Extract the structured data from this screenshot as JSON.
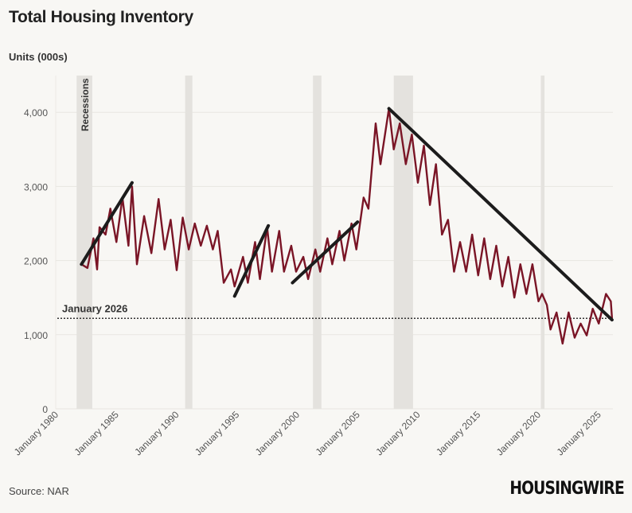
{
  "title": "Total Housing Inventory",
  "source": "Source: NAR",
  "logo": "HOUSINGWIRE",
  "chart_data": {
    "type": "line",
    "title": "Total Housing Inventory",
    "ylabel": "Units (000s)",
    "ylim": [
      0,
      4300
    ],
    "xlim": [
      1980,
      2026.2
    ],
    "grid": true,
    "yticks": [
      0,
      1000,
      2000,
      3000,
      4000
    ],
    "ytick_labels": [
      "0",
      "1,000",
      "2,000",
      "3,000",
      "4,000"
    ],
    "xticks": [
      1980,
      1985,
      1990,
      1995,
      2000,
      2005,
      2010,
      2015,
      2020,
      2025
    ],
    "xtick_labels": [
      "January 1980",
      "January 1985",
      "January 1990",
      "January 1995",
      "January 2000",
      "January 2005",
      "January 2010",
      "January 2015",
      "January 2020",
      "January 2025"
    ],
    "line_color": "#7a1526",
    "recession_label": "Recessions",
    "recessions": [
      [
        1981.6,
        1982.9
      ],
      [
        1990.6,
        1991.2
      ],
      [
        2001.2,
        2001.9
      ],
      [
        2007.9,
        2009.5
      ],
      [
        2020.1,
        2020.4
      ]
    ],
    "reference_line": {
      "label": "January 2026",
      "value": 1220
    },
    "trend_lines": [
      [
        [
          1982.0,
          1950
        ],
        [
          1986.2,
          3050
        ]
      ],
      [
        [
          1994.7,
          1520
        ],
        [
          1997.5,
          2470
        ]
      ],
      [
        [
          1999.5,
          1700
        ],
        [
          2004.9,
          2520
        ]
      ],
      [
        [
          2007.5,
          4050
        ],
        [
          2026.0,
          1200
        ]
      ]
    ],
    "series": [
      [
        1982.0,
        1950
      ],
      [
        1982.5,
        1900
      ],
      [
        1983.0,
        2300
      ],
      [
        1983.3,
        1880
      ],
      [
        1983.5,
        2450
      ],
      [
        1984.0,
        2350
      ],
      [
        1984.4,
        2700
      ],
      [
        1984.9,
        2250
      ],
      [
        1985.4,
        2850
      ],
      [
        1985.9,
        2200
      ],
      [
        1986.2,
        3000
      ],
      [
        1986.6,
        1950
      ],
      [
        1987.2,
        2600
      ],
      [
        1987.8,
        2100
      ],
      [
        1988.4,
        2830
      ],
      [
        1988.9,
        2150
      ],
      [
        1989.4,
        2550
      ],
      [
        1989.9,
        1870
      ],
      [
        1990.4,
        2580
      ],
      [
        1990.9,
        2150
      ],
      [
        1991.4,
        2500
      ],
      [
        1991.9,
        2200
      ],
      [
        1992.4,
        2470
      ],
      [
        1992.9,
        2150
      ],
      [
        1993.3,
        2400
      ],
      [
        1993.8,
        1700
      ],
      [
        1994.4,
        1880
      ],
      [
        1994.7,
        1650
      ],
      [
        1995.4,
        2050
      ],
      [
        1995.8,
        1700
      ],
      [
        1996.4,
        2250
      ],
      [
        1996.8,
        1750
      ],
      [
        1997.4,
        2450
      ],
      [
        1997.8,
        1850
      ],
      [
        1998.4,
        2400
      ],
      [
        1998.8,
        1850
      ],
      [
        1999.4,
        2200
      ],
      [
        1999.8,
        1850
      ],
      [
        2000.4,
        2050
      ],
      [
        2000.8,
        1750
      ],
      [
        2001.4,
        2150
      ],
      [
        2001.8,
        1850
      ],
      [
        2002.4,
        2300
      ],
      [
        2002.8,
        1950
      ],
      [
        2003.4,
        2400
      ],
      [
        2003.8,
        2000
      ],
      [
        2004.4,
        2500
      ],
      [
        2004.8,
        2150
      ],
      [
        2005.4,
        2850
      ],
      [
        2005.8,
        2700
      ],
      [
        2006.4,
        3850
      ],
      [
        2006.8,
        3300
      ],
      [
        2007.5,
        4050
      ],
      [
        2007.9,
        3500
      ],
      [
        2008.4,
        3850
      ],
      [
        2008.9,
        3300
      ],
      [
        2009.4,
        3700
      ],
      [
        2009.9,
        3050
      ],
      [
        2010.4,
        3550
      ],
      [
        2010.9,
        2750
      ],
      [
        2011.4,
        3300
      ],
      [
        2011.9,
        2350
      ],
      [
        2012.4,
        2550
      ],
      [
        2012.9,
        1850
      ],
      [
        2013.4,
        2250
      ],
      [
        2013.9,
        1850
      ],
      [
        2014.4,
        2350
      ],
      [
        2014.9,
        1800
      ],
      [
        2015.4,
        2300
      ],
      [
        2015.9,
        1750
      ],
      [
        2016.4,
        2200
      ],
      [
        2016.9,
        1650
      ],
      [
        2017.4,
        2050
      ],
      [
        2017.9,
        1500
      ],
      [
        2018.4,
        1950
      ],
      [
        2018.9,
        1550
      ],
      [
        2019.4,
        1950
      ],
      [
        2019.9,
        1450
      ],
      [
        2020.2,
        1550
      ],
      [
        2020.6,
        1400
      ],
      [
        2020.9,
        1070
      ],
      [
        2021.4,
        1300
      ],
      [
        2021.9,
        880
      ],
      [
        2022.4,
        1300
      ],
      [
        2022.9,
        960
      ],
      [
        2023.4,
        1150
      ],
      [
        2023.9,
        990
      ],
      [
        2024.4,
        1350
      ],
      [
        2024.9,
        1150
      ],
      [
        2025.5,
        1550
      ],
      [
        2025.9,
        1450
      ],
      [
        2026.0,
        1220
      ]
    ]
  }
}
